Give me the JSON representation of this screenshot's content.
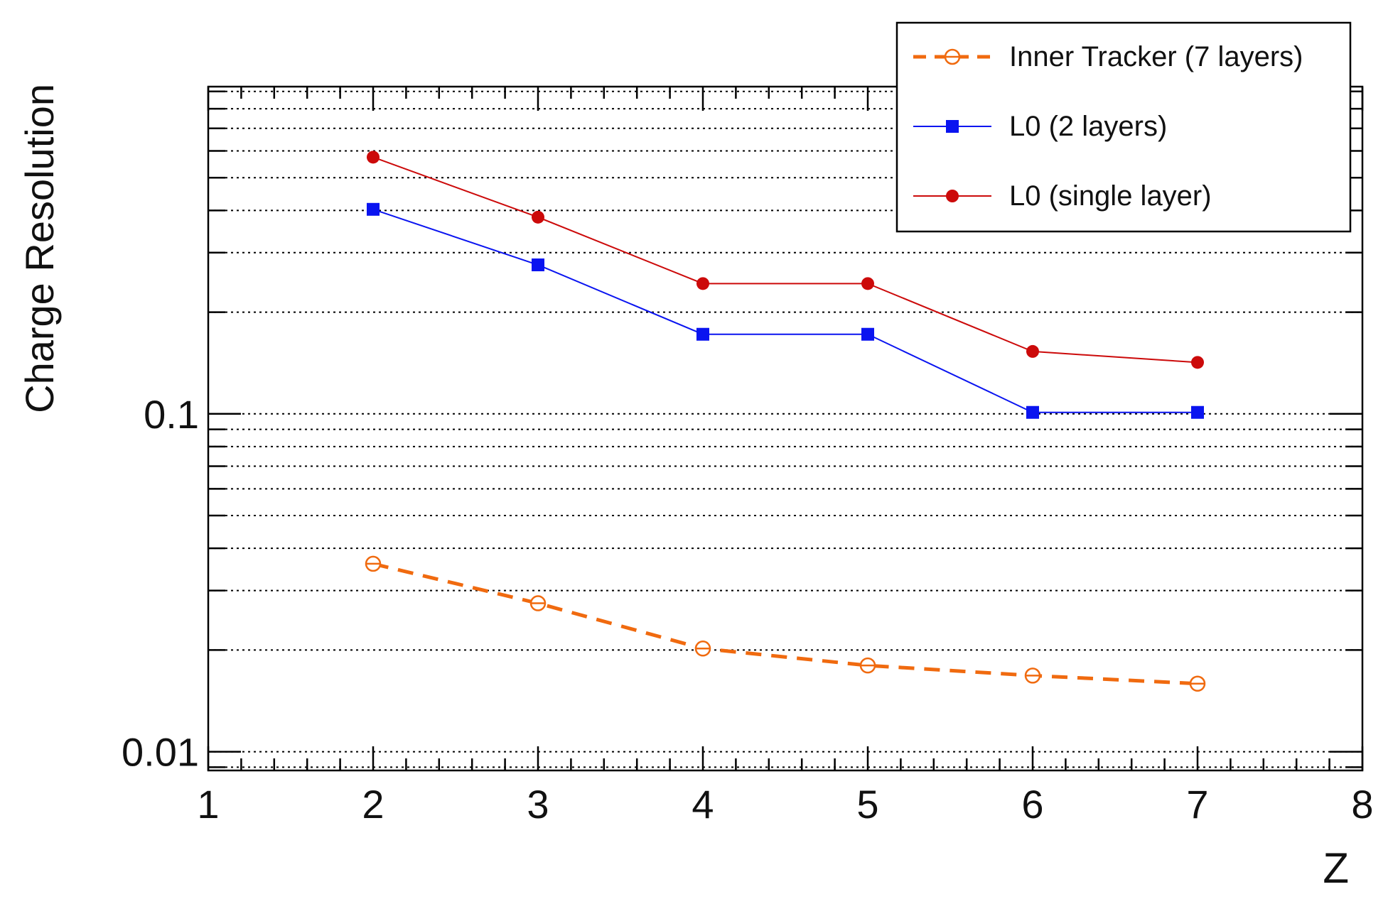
{
  "chart_data": {
    "type": "line",
    "title": "",
    "xlabel": "Z",
    "ylabel": "Charge Resolution",
    "xscale": "linear",
    "yscale": "log",
    "xlim": [
      1,
      8
    ],
    "ylim": [
      0.0088,
      0.93
    ],
    "grid": {
      "x": false,
      "y": true,
      "style": "dotted"
    },
    "legend_position": "top-right",
    "x_tick_labels": [
      "1",
      "2",
      "3",
      "4",
      "5",
      "6",
      "7",
      "8"
    ],
    "y_tick_labels": [
      "0.01",
      "0.1"
    ],
    "series": [
      {
        "name": "Inner Tracker (7 layers)",
        "color": "#f06a0f",
        "line": "dashed",
        "marker": "open-circle",
        "x": [
          2,
          3,
          4,
          5,
          6,
          7
        ],
        "values": [
          0.036,
          0.0275,
          0.0202,
          0.018,
          0.0168,
          0.0159
        ]
      },
      {
        "name": "L0 (2 layers)",
        "color": "#0a14f0",
        "line": "solid",
        "marker": "filled-square",
        "x": [
          2,
          3,
          4,
          5,
          6,
          7
        ],
        "values": [
          0.403,
          0.276,
          0.172,
          0.172,
          0.101,
          0.101
        ]
      },
      {
        "name": "L0 (single layer)",
        "color": "#cc0a0a",
        "line": "solid",
        "marker": "filled-circle",
        "x": [
          2,
          3,
          4,
          5,
          6,
          7
        ],
        "values": [
          0.575,
          0.382,
          0.243,
          0.243,
          0.153,
          0.142
        ]
      }
    ]
  }
}
